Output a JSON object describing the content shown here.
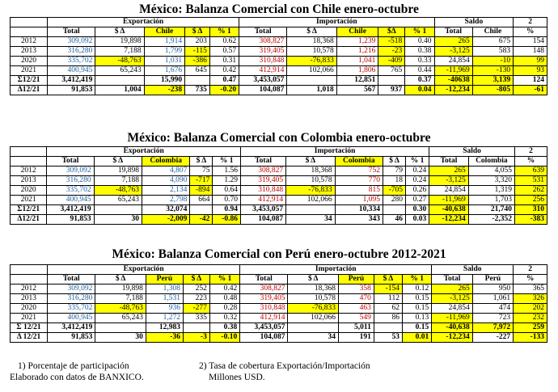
{
  "tables": [
    {
      "title": "México: Balanza Comercial con Chile enero-octubre",
      "partner": "Chile",
      "groups": {
        "exp": "Exportación",
        "imp": "Importación",
        "saldo": "Saldo",
        "ratio": "2"
      },
      "cols": [
        "Total",
        "$ Δ",
        "Chile",
        "$ Δ",
        "% 1",
        "Total",
        "$ Δ",
        "Chile",
        "$Δ",
        "% 1",
        "Total",
        "Chile",
        "%"
      ],
      "rows": [
        [
          "2012",
          "309,092",
          "19,898",
          "1,914",
          "203",
          "0.62",
          "308,827",
          "18,368",
          "1,239",
          "-518",
          "0.40",
          "265",
          "675",
          "154"
        ],
        [
          "2013",
          "316,280",
          "7,188",
          "1,799",
          "-115",
          "0.57",
          "319,405",
          "10,578",
          "1,216",
          "-23",
          "0.38",
          "-3,125",
          "583",
          "148"
        ],
        [
          "2020",
          "335,702",
          "-48,763",
          "1,031",
          "-386",
          "0.31",
          "310,848",
          "-76,833",
          "1,041",
          "-409",
          "0.33",
          "24,854",
          "-10",
          "99"
        ],
        [
          "2021",
          "400,945",
          "65,243",
          "1,676",
          "645",
          "0.42",
          "412,914",
          "102,066",
          "1,806",
          "765",
          "0.44",
          "-11,969",
          "-130",
          "93"
        ]
      ],
      "sum_row": [
        "Σ12/21",
        "3,412,419",
        "",
        "15,990",
        "",
        "0.47",
        "3,453,057",
        "",
        "12,851",
        "",
        "0.37",
        "-40638",
        "3,139",
        "124"
      ],
      "delta_row": [
        "Δ12/21",
        "91,853",
        "1,004",
        "-238",
        "735",
        "-0.20",
        "104,087",
        "1,018",
        "567",
        "937",
        "0.04",
        "-12,234",
        "-805",
        "-61"
      ]
    },
    {
      "title": "México: Balanza Comercial con Colombia enero-octubre",
      "partner": "Colombia",
      "groups": {
        "exp": "Exportación",
        "imp": "Importación",
        "saldo": "Saldo",
        "ratio": "2"
      },
      "cols": [
        "Total",
        "$ Δ",
        "Colombia",
        "$ Δ",
        "% 1",
        "Total",
        "$ Δ",
        "Colombia",
        "$ Δ",
        "% 1",
        "Total",
        "Colombia",
        "%"
      ],
      "rows": [
        [
          "2012",
          "309,092",
          "19,898",
          "4,807",
          "75",
          "1.56",
          "308,827",
          "18,368",
          "752",
          "79",
          "0.24",
          "265",
          "4,055",
          "639"
        ],
        [
          "2013",
          "316,280",
          "7,188",
          "4,090",
          "-717",
          "1.29",
          "319,405",
          "10,578",
          "770",
          "18",
          "0.24",
          "-3,125",
          "3,320",
          "531"
        ],
        [
          "2020",
          "335,702",
          "-48,763",
          "2,134",
          "-894",
          "0.64",
          "310,848",
          "-76,833",
          "815",
          "-705",
          "0.26",
          "24,854",
          "1,319",
          "262"
        ],
        [
          "2021",
          "400,945",
          "65,243",
          "2,798",
          "664",
          "0.70",
          "412,914",
          "102,066",
          "1,095",
          "280",
          "0.27",
          "-11,969",
          "1,703",
          "256"
        ]
      ],
      "sum_row": [
        "Σ12/21",
        "3,412,419",
        "",
        "32,074",
        "",
        "0.94",
        "3,453,057",
        "",
        "10,334",
        "",
        "0.30",
        "-40,638",
        "21,740",
        "310"
      ],
      "delta_row": [
        "Δ12/21",
        "91,853",
        "30",
        "-2,009",
        "-42",
        "-0.86",
        "104,087",
        "34",
        "343",
        "46",
        "0.03",
        "-12,234",
        "-2,352",
        "-383"
      ]
    },
    {
      "title": "México: Balanza Comercial con Perú enero-octubre 2012-2021",
      "partner": "Perú",
      "groups": {
        "exp": "Exportación",
        "imp": "Importación",
        "saldo": "Saldo",
        "ratio": "2"
      },
      "cols": [
        "Total",
        "$ Δ",
        "Perú",
        "$ Δ",
        "% 1",
        "Total",
        "$ Δ",
        "Perú",
        "$ Δ",
        "% 1",
        "Total",
        "Perú",
        "%"
      ],
      "rows": [
        [
          "2012",
          "309,092",
          "19,898",
          "1,308",
          "252",
          "0.42",
          "308,827",
          "18,368",
          "358",
          "-154",
          "0.12",
          "265",
          "950",
          "365"
        ],
        [
          "2013",
          "316,280",
          "7,188",
          "1,531",
          "223",
          "0.48",
          "319,405",
          "10,578",
          "470",
          "112",
          "0.15",
          "-3,125",
          "1,061",
          "326"
        ],
        [
          "2020",
          "335,702",
          "-48,763",
          "936",
          "-277",
          "0.28",
          "310,848",
          "-76,833",
          "463",
          "62",
          "0.15",
          "24,854",
          "474",
          "202"
        ],
        [
          "2021",
          "400,945",
          "65,243",
          "1,272",
          "335",
          "0.32",
          "412,914",
          "102,066",
          "549",
          "86",
          "0.13",
          "-11,969",
          "723",
          "232"
        ]
      ],
      "sum_row": [
        "Σ 12/21",
        "3,412,419",
        "",
        "12,983",
        "",
        "0.38",
        "3,453,057",
        "",
        "5,011",
        "",
        "0.15",
        "-40,638",
        "7,972",
        "259"
      ],
      "delta_row": [
        "Δ 12/21",
        "91,853",
        "30",
        "-36",
        "-3",
        "-0.10",
        "104,087",
        "34",
        "191",
        "53",
        "0.01",
        "-12,234",
        "-227",
        "-133"
      ]
    }
  ],
  "footnotes": {
    "note1": "1)    Porcentaje de participación",
    "note2": "2) Tasa de cobertura Exportación/Importación",
    "source": "Elaborado con datos de BANXICO.",
    "units": "Millones USD."
  },
  "colors": {
    "highlight": "#ffff00",
    "negative": "#c00000",
    "total_blue": "#1f5fa0"
  }
}
